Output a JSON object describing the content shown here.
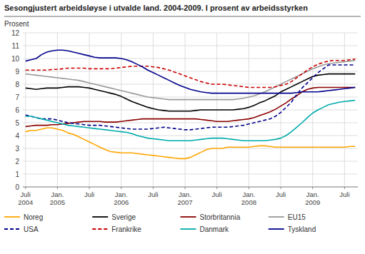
{
  "chart_data": {
    "type": "line",
    "title": "Sesongjustert arbeidsløyse i utvalde land. 2004-2009. I prosent av arbeidsstyrken",
    "ylabel": "Prosent",
    "categories": [
      "Juli\n2004",
      null,
      null,
      null,
      null,
      null,
      "Jan.\n2005",
      null,
      null,
      null,
      null,
      null,
      "Juli",
      null,
      null,
      null,
      null,
      null,
      "Jan.\n2006",
      null,
      null,
      null,
      null,
      null,
      "Juli",
      null,
      null,
      null,
      null,
      null,
      "Jan.\n2007",
      null,
      null,
      null,
      null,
      null,
      "Juli",
      null,
      null,
      null,
      null,
      null,
      "Jan.\n2008",
      null,
      null,
      null,
      null,
      null,
      "Juli",
      null,
      null,
      null,
      null,
      null,
      "Jan.\n2009",
      null,
      null,
      null,
      null,
      null,
      "Juli",
      null,
      null
    ],
    "ylim": [
      0,
      12
    ],
    "yticks": [
      0,
      1,
      2,
      3,
      4,
      5,
      6,
      7,
      8,
      9,
      10,
      11,
      12
    ],
    "grid": true,
    "series": [
      {
        "name": "Noreg",
        "color": "#FFA500",
        "line_style": "solid",
        "values": [
          4.3,
          4.4,
          4.4,
          4.5,
          4.6,
          4.6,
          4.5,
          4.4,
          4.2,
          4.1,
          3.9,
          3.7,
          3.5,
          3.3,
          3.1,
          2.9,
          2.75,
          2.7,
          2.65,
          2.65,
          2.65,
          2.6,
          2.55,
          2.5,
          2.45,
          2.4,
          2.35,
          2.3,
          2.25,
          2.2,
          2.2,
          2.3,
          2.5,
          2.7,
          2.9,
          3.0,
          3.0,
          3.0,
          3.1,
          3.1,
          3.1,
          3.1,
          3.1,
          3.15,
          3.2,
          3.2,
          3.15,
          3.1,
          3.1,
          3.1,
          3.1,
          3.1,
          3.1,
          3.1,
          3.1,
          3.1,
          3.1,
          3.1,
          3.1,
          3.1,
          3.1,
          3.15,
          3.15
        ]
      },
      {
        "name": "Sverige",
        "color": "#000000",
        "line_style": "solid",
        "values": [
          7.7,
          7.65,
          7.6,
          7.65,
          7.7,
          7.7,
          7.7,
          7.75,
          7.8,
          7.8,
          7.8,
          7.75,
          7.7,
          7.6,
          7.5,
          7.4,
          7.3,
          7.2,
          7.05,
          6.85,
          6.65,
          6.5,
          6.35,
          6.2,
          6.1,
          6.0,
          5.95,
          5.9,
          5.9,
          5.9,
          5.9,
          5.9,
          5.95,
          6.0,
          6.0,
          6.0,
          6.0,
          6.0,
          6.0,
          6.0,
          6.05,
          6.1,
          6.2,
          6.35,
          6.55,
          6.7,
          6.9,
          7.1,
          7.4,
          7.6,
          7.8,
          8.0,
          8.2,
          8.4,
          8.6,
          8.7,
          8.75,
          8.8,
          8.8,
          8.8,
          8.8,
          8.8,
          8.8
        ]
      },
      {
        "name": "Storbritannia",
        "color": "#8B0000",
        "line_style": "solid",
        "values": [
          4.7,
          4.75,
          4.8,
          4.8,
          4.8,
          4.85,
          4.85,
          4.9,
          4.95,
          5.0,
          5.05,
          5.1,
          5.1,
          5.1,
          5.1,
          5.05,
          5.05,
          5.05,
          5.1,
          5.15,
          5.2,
          5.25,
          5.3,
          5.3,
          5.3,
          5.3,
          5.3,
          5.3,
          5.3,
          5.3,
          5.3,
          5.3,
          5.3,
          5.25,
          5.2,
          5.15,
          5.1,
          5.1,
          5.1,
          5.15,
          5.2,
          5.25,
          5.3,
          5.4,
          5.55,
          5.7,
          5.85,
          6.05,
          6.3,
          6.55,
          6.85,
          7.1,
          7.4,
          7.6,
          7.7,
          7.75,
          7.75,
          7.75,
          7.75,
          7.75,
          7.75,
          7.75,
          7.75
        ]
      },
      {
        "name": "EU15",
        "color": "#999999",
        "line_style": "solid",
        "values": [
          8.8,
          8.75,
          8.7,
          8.65,
          8.6,
          8.55,
          8.5,
          8.45,
          8.4,
          8.35,
          8.3,
          8.2,
          8.1,
          8.0,
          7.9,
          7.8,
          7.7,
          7.6,
          7.5,
          7.4,
          7.3,
          7.2,
          7.1,
          7.0,
          6.95,
          6.9,
          6.85,
          6.8,
          6.8,
          6.8,
          6.8,
          6.8,
          6.8,
          6.8,
          6.8,
          6.8,
          6.8,
          6.8,
          6.8,
          6.8,
          6.85,
          6.9,
          7.0,
          7.1,
          7.25,
          7.4,
          7.6,
          7.8,
          8.0,
          8.2,
          8.4,
          8.6,
          8.8,
          9.0,
          9.2,
          9.35,
          9.5,
          9.6,
          9.65,
          9.7,
          9.75,
          9.8,
          9.85
        ]
      },
      {
        "name": "USA",
        "color": "#00008B",
        "line_style": "dashed",
        "values": [
          5.6,
          5.5,
          5.4,
          5.3,
          5.3,
          5.3,
          5.2,
          5.1,
          5.0,
          4.95,
          4.9,
          4.85,
          4.8,
          4.8,
          4.8,
          4.75,
          4.7,
          4.65,
          4.6,
          4.55,
          4.5,
          4.5,
          4.5,
          4.5,
          4.55,
          4.6,
          4.65,
          4.6,
          4.55,
          4.5,
          4.45,
          4.45,
          4.5,
          4.55,
          4.6,
          4.65,
          4.65,
          4.65,
          4.65,
          4.7,
          4.75,
          4.8,
          4.9,
          5.0,
          5.1,
          5.2,
          5.3,
          5.5,
          5.8,
          6.2,
          6.6,
          7.2,
          7.7,
          8.1,
          8.5,
          8.9,
          9.2,
          9.5,
          9.5,
          9.5,
          9.5,
          9.5,
          9.5
        ]
      },
      {
        "name": "Frankrike",
        "color": "#CC0000",
        "line_style": "dashed",
        "values": [
          9.1,
          9.1,
          9.1,
          9.1,
          9.1,
          9.15,
          9.15,
          9.2,
          9.25,
          9.25,
          9.25,
          9.25,
          9.2,
          9.2,
          9.2,
          9.2,
          9.2,
          9.25,
          9.3,
          9.35,
          9.4,
          9.4,
          9.4,
          9.4,
          9.35,
          9.3,
          9.2,
          9.1,
          8.95,
          8.8,
          8.65,
          8.5,
          8.35,
          8.2,
          8.1,
          8.0,
          8.0,
          8.0,
          7.95,
          7.9,
          7.85,
          7.8,
          7.75,
          7.75,
          7.75,
          7.75,
          7.75,
          7.8,
          7.9,
          8.0,
          8.2,
          8.5,
          8.8,
          9.1,
          9.35,
          9.55,
          9.7,
          9.8,
          9.85,
          9.85,
          9.85,
          9.9,
          9.95
        ]
      },
      {
        "name": "Danmark",
        "color": "#00AAAA",
        "line_style": "solid",
        "values": [
          5.5,
          5.5,
          5.4,
          5.3,
          5.2,
          5.1,
          5.0,
          4.9,
          4.8,
          4.75,
          4.7,
          4.65,
          4.6,
          4.55,
          4.5,
          4.45,
          4.4,
          4.35,
          4.3,
          4.25,
          4.15,
          4.0,
          3.9,
          3.8,
          3.75,
          3.7,
          3.65,
          3.6,
          3.6,
          3.6,
          3.6,
          3.6,
          3.65,
          3.7,
          3.75,
          3.8,
          3.8,
          3.8,
          3.75,
          3.7,
          3.65,
          3.6,
          3.6,
          3.6,
          3.6,
          3.6,
          3.65,
          3.7,
          3.8,
          4.0,
          4.3,
          4.65,
          5.0,
          5.4,
          5.75,
          6.0,
          6.2,
          6.4,
          6.5,
          6.6,
          6.65,
          6.7,
          6.75
        ]
      },
      {
        "name": "Tyskland",
        "color": "#00008B",
        "line_style": "solid",
        "values": [
          9.8,
          9.9,
          10.0,
          10.3,
          10.5,
          10.6,
          10.65,
          10.65,
          10.6,
          10.5,
          10.4,
          10.3,
          10.2,
          10.1,
          10.05,
          10.05,
          10.05,
          10.05,
          10.0,
          9.9,
          9.75,
          9.55,
          9.35,
          9.1,
          8.9,
          8.7,
          8.5,
          8.3,
          8.1,
          7.9,
          7.75,
          7.6,
          7.5,
          7.4,
          7.35,
          7.3,
          7.3,
          7.3,
          7.3,
          7.3,
          7.3,
          7.3,
          7.3,
          7.3,
          7.3,
          7.3,
          7.3,
          7.3,
          7.3,
          7.3,
          7.3,
          7.35,
          7.4,
          7.4,
          7.4,
          7.4,
          7.45,
          7.5,
          7.55,
          7.6,
          7.65,
          7.7,
          7.75
        ]
      }
    ]
  }
}
